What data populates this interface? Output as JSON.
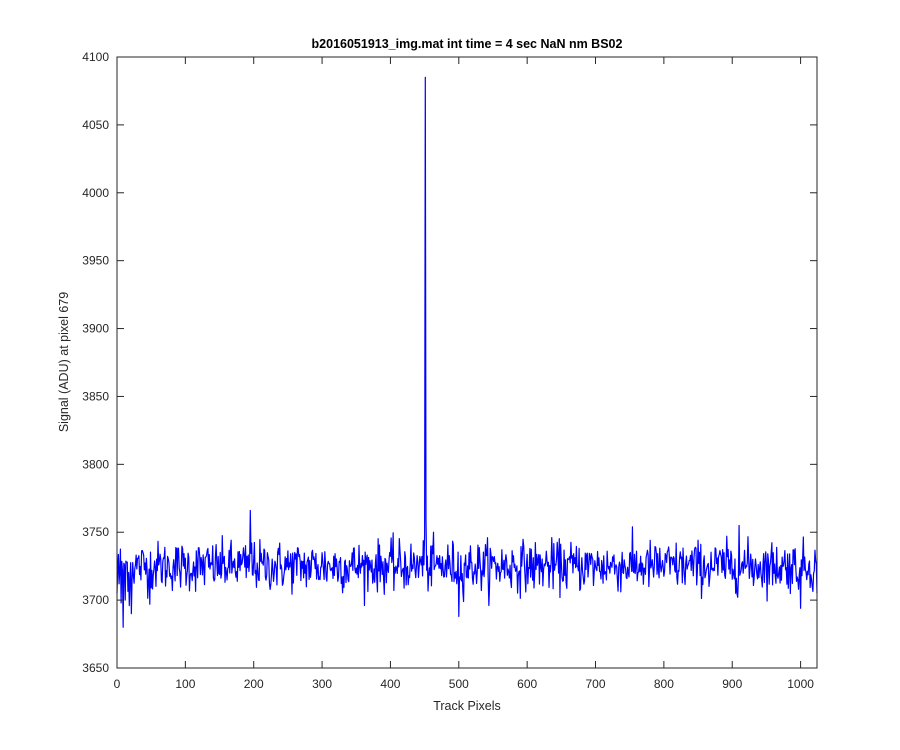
{
  "chart_data": {
    "type": "line",
    "title": "b2016051913_img.mat int time = 4 sec  NaN nm BS02",
    "xlabel": "Track Pixels",
    "ylabel": "Signal (ADU) at pixel 679",
    "xlim": [
      0,
      1024
    ],
    "ylim": [
      3650,
      4100
    ],
    "xticks": [
      0,
      100,
      200,
      300,
      400,
      500,
      600,
      700,
      800,
      900,
      1000
    ],
    "yticks": [
      3650,
      3700,
      3750,
      3800,
      3850,
      3900,
      3950,
      4000,
      4050,
      4100
    ],
    "grid": false,
    "box": true,
    "line_color": "#0000ff",
    "axis_color": "#262626",
    "noise": {
      "baseline": 3725,
      "amplitude": 9,
      "seed": 12345
    },
    "series": [
      {
        "points": [
          [
            0,
            3705
          ],
          [
            3,
            3712
          ],
          [
            6,
            3698
          ],
          [
            9,
            3680
          ],
          [
            12,
            3700
          ],
          [
            15,
            3728
          ],
          [
            18,
            3696
          ],
          [
            21,
            3690
          ],
          [
            48,
            3697
          ],
          [
            195,
            3766
          ],
          [
            197,
            3742
          ],
          [
            200,
            3730
          ],
          [
            449,
            3726
          ],
          [
            450,
            3748
          ],
          [
            451,
            4085
          ],
          [
            452,
            3760
          ],
          [
            453,
            3722
          ],
          [
            500,
            3688
          ],
          [
            502,
            3715
          ],
          [
            910,
            3755
          ],
          [
            912,
            3720
          ],
          [
            1000,
            3694
          ],
          [
            1002,
            3718
          ],
          [
            1024,
            3705
          ]
        ]
      }
    ]
  }
}
